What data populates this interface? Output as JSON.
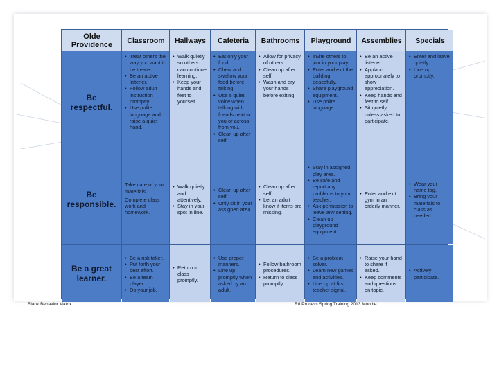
{
  "corner_label": "Olde Providence",
  "columns": [
    "Classroom",
    "Hallways",
    "Cafeteria",
    "Bathrooms",
    "Playground",
    "Assemblies",
    "Specials"
  ],
  "rows": [
    {
      "label": "Be respectful.",
      "cells": [
        {
          "type": "bullets",
          "items": [
            "Treat others the way you want to be treated.",
            "Be an active listener.",
            "Follow adult instruction promptly.",
            "Use polite language and raise a quiet hand."
          ]
        },
        {
          "type": "bullets",
          "items": [
            "Walk quietly so others can continue learning.",
            "Keep your hands and feet to yourself."
          ]
        },
        {
          "type": "bullets",
          "items": [
            "Eat only your food.",
            "Chew and swallow your food before talking.",
            "Use a quiet voice when talking with friends next to you or across from you.",
            "Clean up after self."
          ]
        },
        {
          "type": "bullets",
          "items": [
            "Allow for privacy of others.",
            "Clean up after self.",
            "Wash and dry your hands before exiting."
          ]
        },
        {
          "type": "bullets",
          "items": [
            "Invite others to join in your play.",
            "Enter and exit the building peacefully.",
            "Share playground equipment.",
            "Use polite language."
          ]
        },
        {
          "type": "bullets",
          "items": [
            "Be an active listener.",
            "Applaud appropriately to show appreciation.",
            "Keep hands and feet to self.",
            "Sit quietly, unless asked to participate."
          ]
        },
        {
          "type": "bullets",
          "items": [
            "Enter and leave quietly.",
            "Line up promptly."
          ]
        }
      ]
    },
    {
      "label": "Be responsible.",
      "cells": [
        {
          "type": "paras",
          "items": [
            "Take care of your materials.",
            "Complete class work and homework."
          ]
        },
        {
          "type": "bullets",
          "items": [
            "Walk quietly and attentively.",
            "Stay in your spot in line."
          ]
        },
        {
          "type": "bullets",
          "items": [
            "Clean up after self.",
            "Only sit in your assigned area."
          ]
        },
        {
          "type": "bullets",
          "items": [
            "Clean up after self.",
            "Let an adult know if items are missing."
          ]
        },
        {
          "type": "bullets",
          "items": [
            "Stay in assigned play area.",
            "Be safe and report any problems to your teacher.",
            "Ask permission to leave any setting.",
            "Clean up playground equipment."
          ]
        },
        {
          "type": "bullets",
          "items": [
            "Enter and exit gym in an orderly manner."
          ]
        },
        {
          "type": "bullets",
          "items": [
            "Wear your name tag.",
            "Bring your materials to class as needed."
          ]
        }
      ]
    },
    {
      "label": "Be a great learner.",
      "cells": [
        {
          "type": "bullets",
          "items": [
            "Be a risk taker.",
            "Put forth your best effort.",
            "Be a team player.",
            "Do your job."
          ]
        },
        {
          "type": "bullets",
          "items": [
            "Return to class promptly."
          ]
        },
        {
          "type": "bullets",
          "items": [
            "Use proper manners.",
            "Line up promptly when asked by an adult."
          ]
        },
        {
          "type": "bullets",
          "items": [
            "Follow bathroom procedures.",
            "Return to class promptly."
          ]
        },
        {
          "type": "bullets",
          "items": [
            "Be a problem solver.",
            "Learn new games and activities.",
            "Line up at first teacher signal."
          ]
        },
        {
          "type": "bullets",
          "items": [
            "Raise your hand to share if asked.",
            "Keep comments and questions on topic."
          ]
        },
        {
          "type": "bullets",
          "items": [
            "Actively participate."
          ]
        }
      ]
    }
  ],
  "footer": {
    "left": "Blank Behavior Matrix",
    "right": "RtI Process Spring Training 2013 Moodle"
  },
  "colors": {
    "header_bg": "#cfdcf0",
    "dark_cell": "#4d7cc7",
    "light_cell": "#c3d3ee",
    "grid_line": "#3a5f9a"
  }
}
